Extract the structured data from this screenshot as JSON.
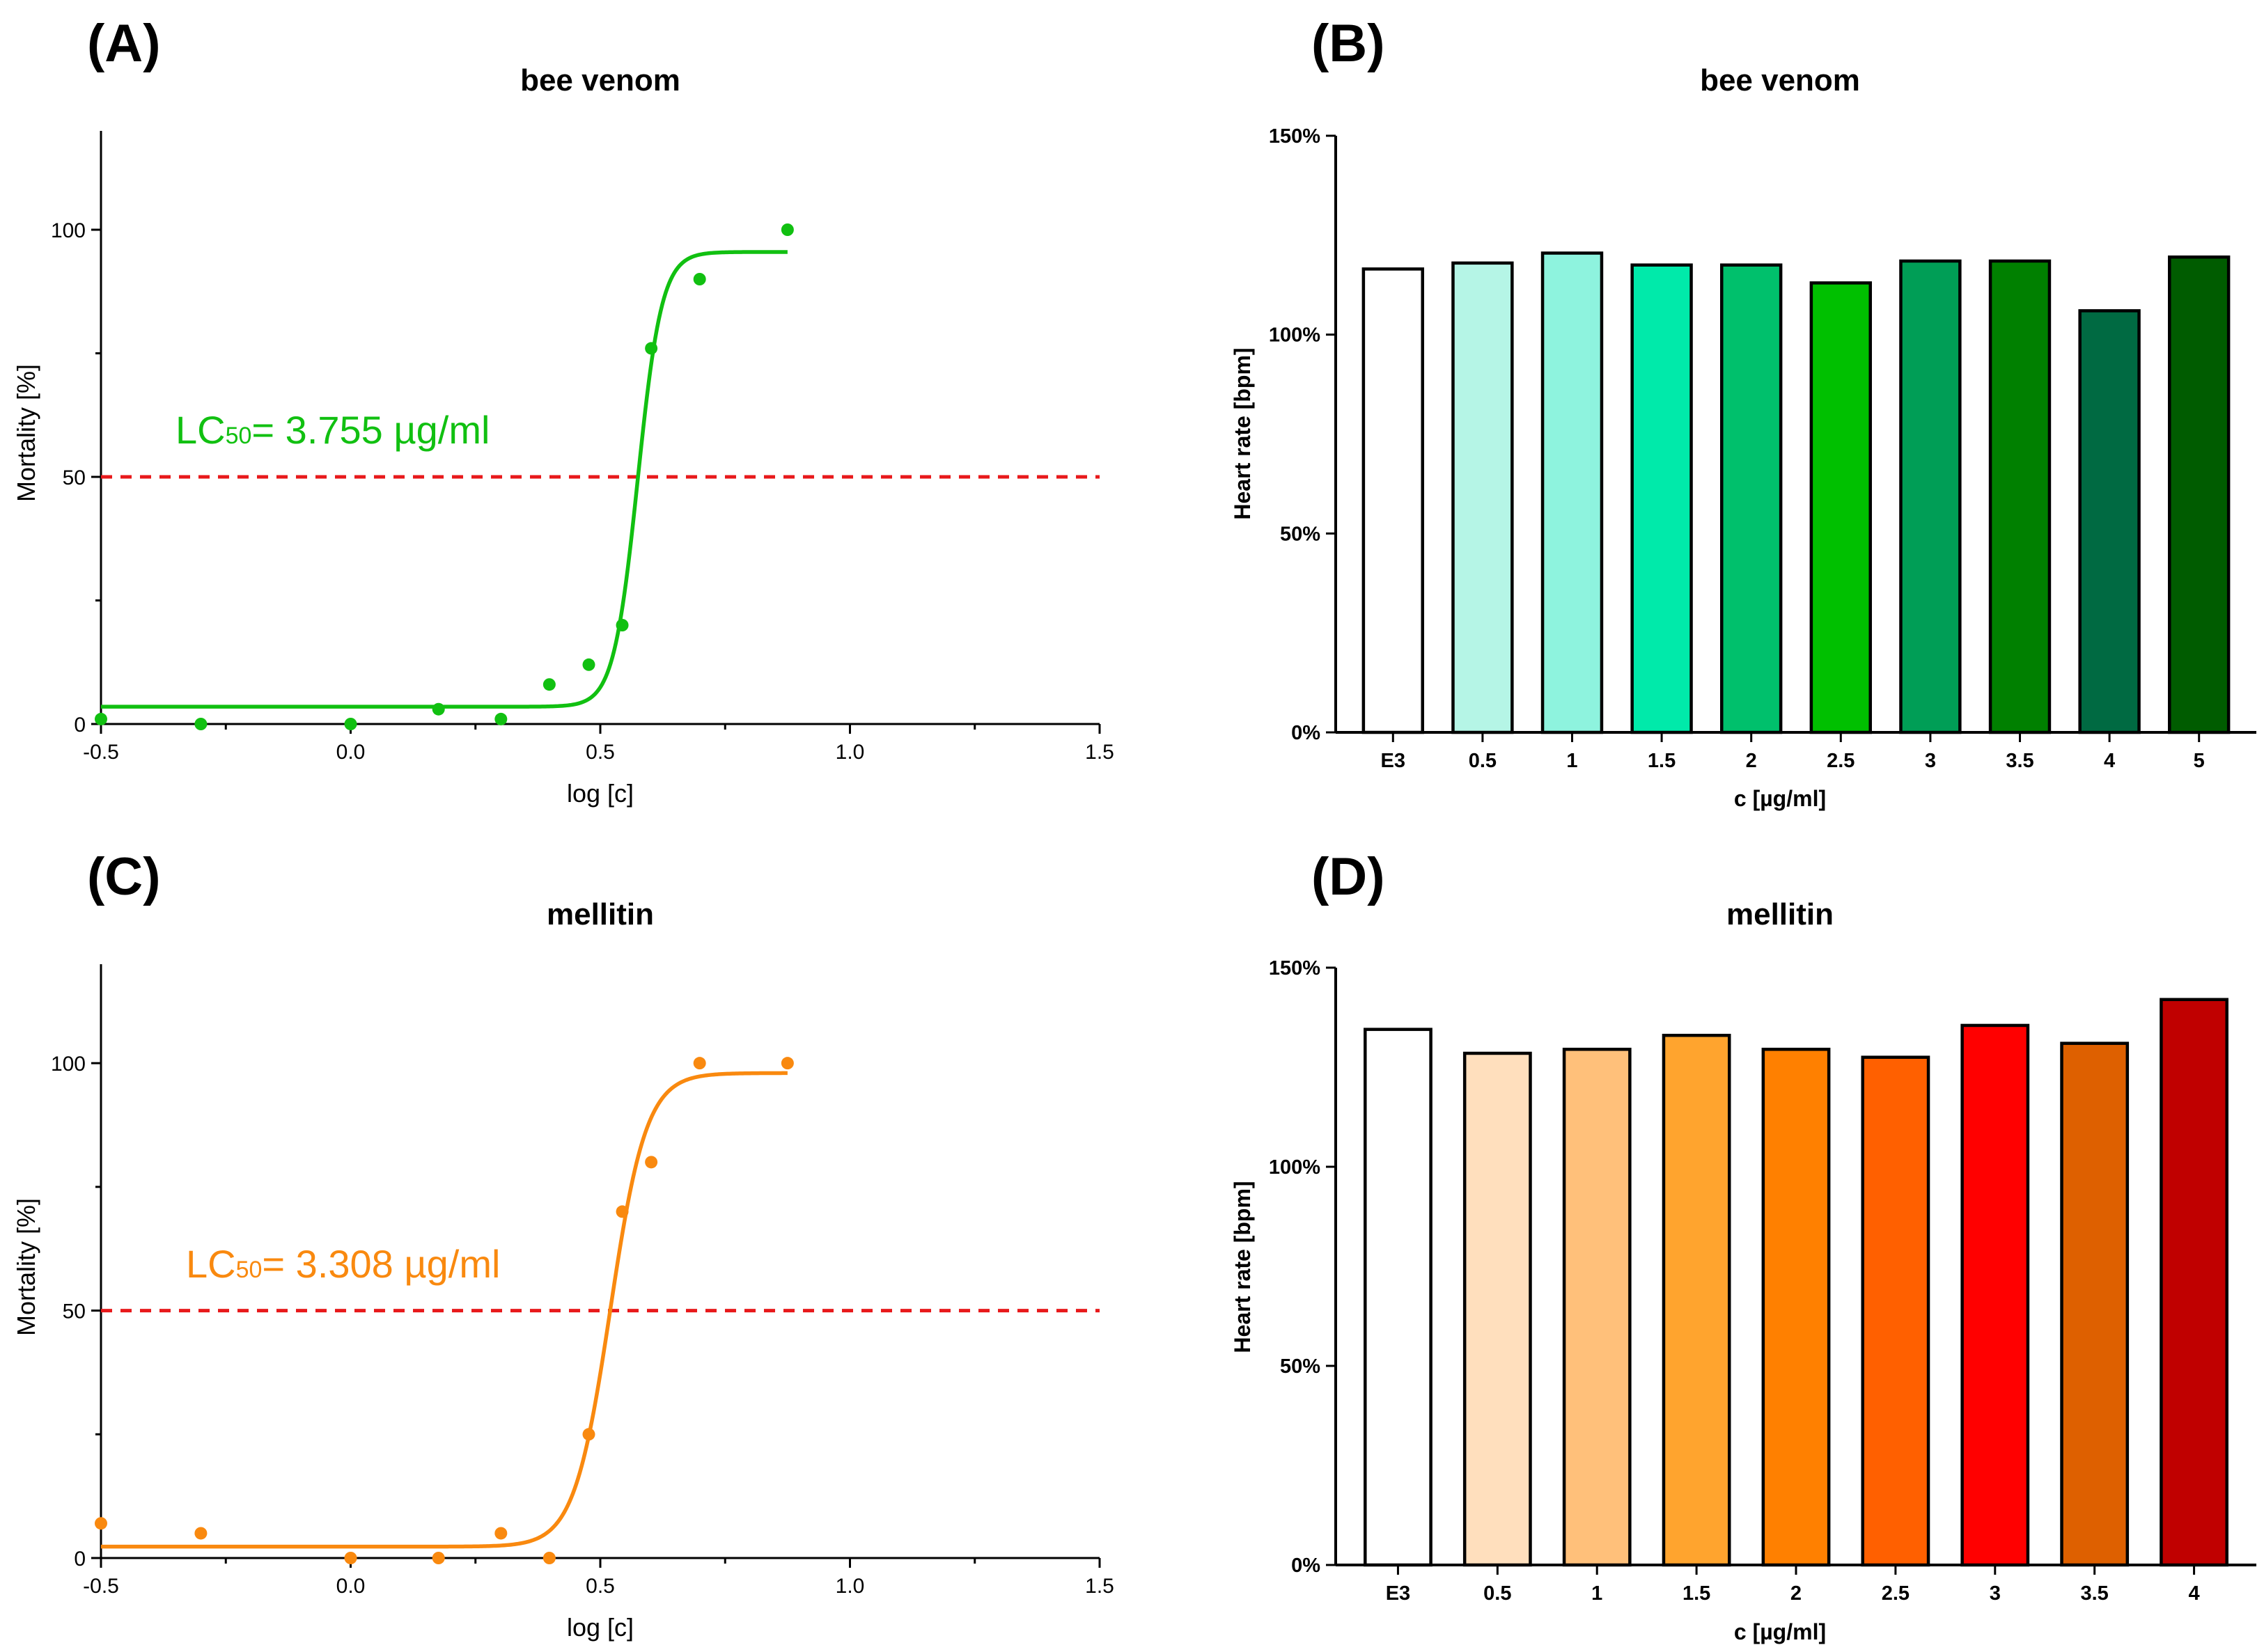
{
  "chart_data": [
    {
      "panel": "(A)",
      "type": "scatter",
      "title": "bee venom",
      "xlabel": "log [c]",
      "ylabel": "Mortality [%]",
      "xlim": [
        -0.5,
        1.5
      ],
      "ylim": [
        0,
        120
      ],
      "xticks": [
        "-0.5",
        "0.0",
        "0.5",
        "1.0",
        "1.5"
      ],
      "yticks": [
        "0",
        "50",
        "100"
      ],
      "color": "#11c011",
      "reference_line": {
        "y": 50,
        "color": "#e8191b",
        "style": "dashed"
      },
      "annotation": {
        "prefix": "LC",
        "sub": "50",
        "suffix": "= 3.755 µg/ml"
      },
      "points": {
        "x": [
          -0.5,
          -0.3,
          0.0,
          0.176,
          0.301,
          0.398,
          0.477,
          0.544,
          0.602,
          0.699,
          0.875
        ],
        "y": [
          1,
          0,
          0,
          3,
          1,
          8,
          12,
          20,
          76,
          90,
          100
        ]
      },
      "fit": {
        "model": "sigmoid",
        "bottom": 3.5,
        "top": 95.5,
        "log_ec50": 0.575,
        "hill_slope": 18.0,
        "x_range": [
          -0.5,
          0.875
        ]
      }
    },
    {
      "panel": "(B)",
      "type": "bar",
      "title": "bee venom",
      "xlabel": "c [µg/ml]",
      "ylabel": "Heart rate [bpm]",
      "ylim": [
        0,
        150
      ],
      "yticks": [
        "0%",
        "50%",
        "100%",
        "150%"
      ],
      "categories": [
        "E3",
        "0.5",
        "1",
        "1.5",
        "2",
        "2.5",
        "3",
        "3.5",
        "4",
        "5"
      ],
      "values": [
        116.5,
        118,
        120.5,
        117.5,
        117.5,
        113,
        118.5,
        118.5,
        106,
        119.5
      ],
      "colors": [
        "#ffffff",
        "#b5f5e6",
        "#8ef3de",
        "#00eaaa",
        "#00c06c",
        "#00c000",
        "#009e56",
        "#008000",
        "#006a42",
        "#005c00"
      ]
    },
    {
      "panel": "(C)",
      "type": "scatter",
      "title": "mellitin",
      "xlabel": "log [c]",
      "ylabel": "Mortality [%]",
      "xlim": [
        -0.5,
        1.5
      ],
      "ylim": [
        0,
        120
      ],
      "xticks": [
        "-0.5",
        "0.0",
        "0.5",
        "1.0",
        "1.5"
      ],
      "yticks": [
        "0",
        "50",
        "100"
      ],
      "color": "#f9890f",
      "reference_line": {
        "y": 50,
        "color": "#e8191b",
        "style": "dashed"
      },
      "annotation": {
        "prefix": "LC",
        "sub": "50",
        "suffix": "= 3.308 µg/ml"
      },
      "points": {
        "x": [
          -0.5,
          -0.3,
          0.0,
          0.176,
          0.301,
          0.398,
          0.477,
          0.544,
          0.602,
          0.699,
          0.875
        ],
        "y": [
          7,
          5,
          0,
          0,
          5,
          0,
          25,
          70,
          80,
          100,
          100
        ]
      },
      "fit": {
        "model": "sigmoid",
        "bottom": 2.3,
        "top": 98.0,
        "log_ec50": 0.52,
        "hill_slope": 12.0,
        "x_range": [
          -0.5,
          0.875
        ]
      }
    },
    {
      "panel": "(D)",
      "type": "bar",
      "title": "mellitin",
      "xlabel": "c [µg/ml]",
      "ylabel": "Heart rate [bpm]",
      "ylim": [
        0,
        150
      ],
      "yticks": [
        "0%",
        "50%",
        "100%",
        "150%"
      ],
      "categories": [
        "E3",
        "0.5",
        "1",
        "1.5",
        "2",
        "2.5",
        "3",
        "3.5",
        "4"
      ],
      "values": [
        134.5,
        128.5,
        129.5,
        133,
        129.5,
        127.5,
        135.5,
        131,
        142
      ],
      "colors": [
        "#ffffff",
        "#ffdfbd",
        "#ffc07a",
        "#ffa42e",
        "#ff8000",
        "#ff6000",
        "#ff0000",
        "#de6000",
        "#c00000"
      ]
    }
  ]
}
